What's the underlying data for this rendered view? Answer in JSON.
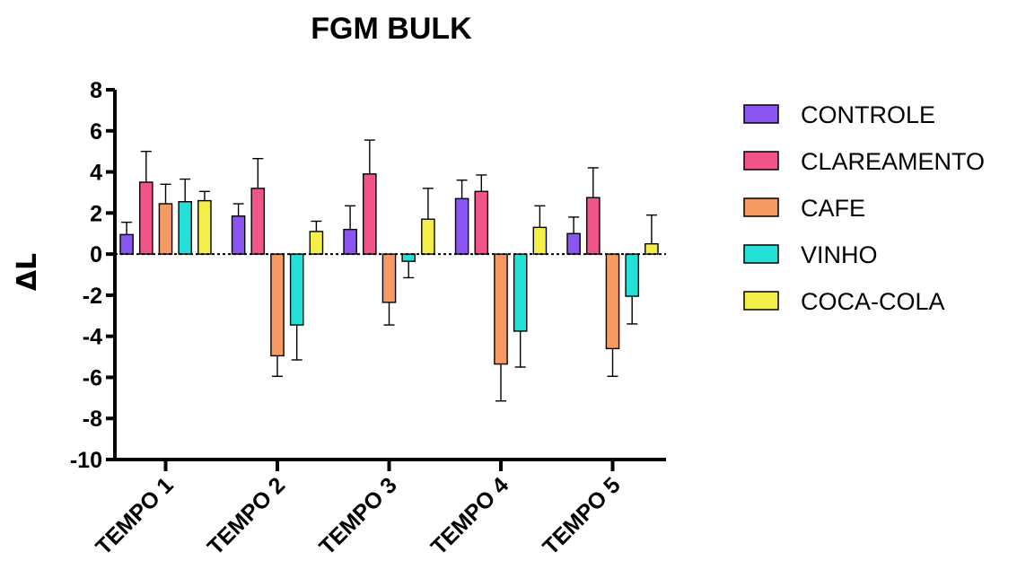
{
  "chart_data": {
    "type": "bar",
    "title": "FGM BULK",
    "ylabel": "ΔL",
    "xlabel": "",
    "ylim": [
      -10,
      8
    ],
    "yticks": [
      8,
      6,
      4,
      2,
      0,
      -2,
      -4,
      -6,
      -8,
      -10
    ],
    "ytick_labels": [
      "8",
      "6",
      "4",
      "2",
      "0",
      "-2",
      "-4",
      "-6",
      "-8",
      "-10"
    ],
    "categories": [
      "TEMPO 1",
      "TEMPO 2",
      "TEMPO 3",
      "TEMPO 4",
      "TEMPO 5"
    ],
    "error_bars": true,
    "legend_position": "right",
    "series": [
      {
        "name": "CONTROLE",
        "color": "#8a55f0",
        "values": [
          0.95,
          1.85,
          1.2,
          2.7,
          1.0
        ],
        "errors": [
          0.6,
          0.6,
          1.15,
          0.9,
          0.8
        ]
      },
      {
        "name": "CLAREAMENTO",
        "color": "#f0548a",
        "values": [
          3.5,
          3.2,
          3.9,
          3.05,
          2.75
        ],
        "errors": [
          1.5,
          1.45,
          1.65,
          0.8,
          1.45
        ]
      },
      {
        "name": "CAFE",
        "color": "#f59a63",
        "values": [
          2.45,
          -4.95,
          -2.35,
          -5.35,
          -4.6
        ],
        "errors": [
          0.95,
          1.0,
          1.1,
          1.8,
          1.35
        ]
      },
      {
        "name": "VINHO",
        "color": "#24e0d6",
        "values": [
          2.55,
          -3.45,
          -0.35,
          -3.75,
          -2.05
        ],
        "errors": [
          1.1,
          1.7,
          0.8,
          1.75,
          1.35
        ]
      },
      {
        "name": "COCA-COLA",
        "color": "#f4ef48",
        "values": [
          2.6,
          1.1,
          1.7,
          1.3,
          0.5
        ],
        "errors": [
          0.45,
          0.5,
          1.5,
          1.05,
          1.4
        ]
      }
    ]
  }
}
